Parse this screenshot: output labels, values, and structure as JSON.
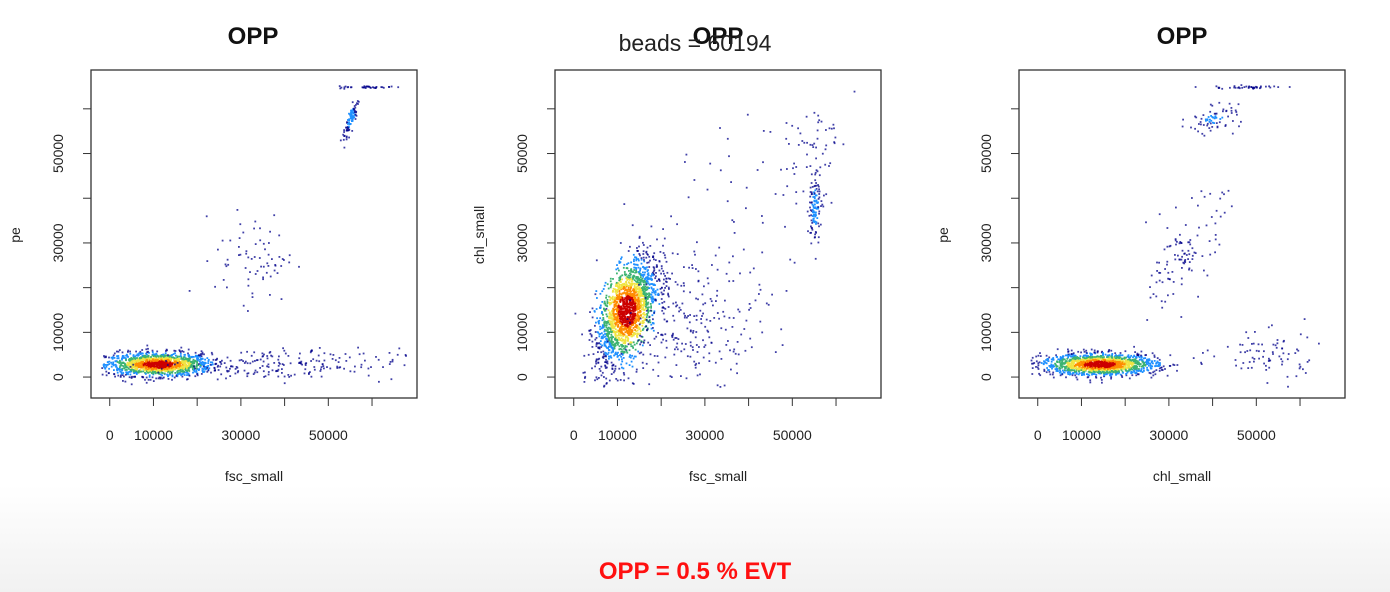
{
  "overlay_text": "beads = 60194",
  "footer": {
    "text": "OPP = 0.5 % EVT",
    "color": "#ff1010"
  },
  "colors": {
    "low": "#00008b",
    "mid_low": "#1e90ff",
    "mid": "#3cb371",
    "mid_high": "#f0e442",
    "high_orange": "#ff8c00",
    "high": "#cc0000"
  },
  "chart_data": [
    {
      "type": "scatter",
      "title": "OPP",
      "xlabel": "fsc_small",
      "ylabel": "pe",
      "xlim": [
        -2000,
        68000
      ],
      "ylim": [
        -2000,
        66000
      ],
      "x_ticks": [
        0,
        10000,
        30000,
        50000
      ],
      "x_minor_ticks": [
        20000,
        40000,
        60000
      ],
      "y_ticks": [
        0,
        10000,
        30000,
        50000
      ],
      "y_minor_ticks": [
        20000,
        40000,
        60000
      ],
      "density_clusters": [
        {
          "x": 11000,
          "y": 3000,
          "sx": 6000,
          "sy": 1300,
          "rho": 0,
          "n": 1400,
          "weight": 1.0
        },
        {
          "x": 38000,
          "y": 3000,
          "sx": 14000,
          "sy": 1800,
          "rho": 0,
          "n": 200,
          "weight": 0.08
        },
        {
          "x": 33000,
          "y": 27000,
          "sx": 4500,
          "sy": 5000,
          "rho": 0,
          "n": 70,
          "weight": 0.06
        },
        {
          "x": 55000,
          "y": 58000,
          "sx": 900,
          "sy": 2500,
          "rho": 0.85,
          "n": 90,
          "weight": 0.2
        },
        {
          "x": 60000,
          "y": 65000,
          "sx": 4000,
          "sy": 150,
          "rho": 0,
          "n": 40,
          "weight": 0.1
        }
      ]
    },
    {
      "type": "scatter",
      "title": "OPP",
      "xlabel": "fsc_small",
      "ylabel": "chl_small",
      "xlim": [
        -2000,
        68000
      ],
      "ylim": [
        -2000,
        66000
      ],
      "x_ticks": [
        0,
        10000,
        30000,
        50000
      ],
      "x_minor_ticks": [
        20000,
        40000,
        60000
      ],
      "y_ticks": [
        0,
        10000,
        30000,
        50000
      ],
      "y_minor_ticks": [
        20000,
        40000,
        60000
      ],
      "density_clusters": [
        {
          "x": 12000,
          "y": 15000,
          "sx": 3500,
          "sy": 6000,
          "rho": 0.55,
          "n": 1800,
          "weight": 1.0
        },
        {
          "x": 27000,
          "y": 12000,
          "sx": 9000,
          "sy": 7000,
          "rho": 0.3,
          "n": 260,
          "weight": 0.08
        },
        {
          "x": 55000,
          "y": 38000,
          "sx": 700,
          "sy": 4000,
          "rho": 0.2,
          "n": 110,
          "weight": 0.2
        },
        {
          "x": 54000,
          "y": 50000,
          "sx": 3000,
          "sy": 6000,
          "rho": 0.2,
          "n": 60,
          "weight": 0.05
        },
        {
          "x": 35000,
          "y": 40000,
          "sx": 12000,
          "sy": 12000,
          "rho": 0.3,
          "n": 50,
          "weight": 0.03
        }
      ]
    },
    {
      "type": "scatter",
      "title": "OPP",
      "xlabel": "chl_small",
      "ylabel": "pe",
      "xlim": [
        -2000,
        68000
      ],
      "ylim": [
        -2000,
        66000
      ],
      "x_ticks": [
        0,
        10000,
        30000,
        50000
      ],
      "x_minor_ticks": [
        20000,
        40000,
        60000
      ],
      "y_ticks": [
        0,
        10000,
        30000,
        50000
      ],
      "y_minor_ticks": [
        20000,
        40000,
        60000
      ],
      "density_clusters": [
        {
          "x": 14000,
          "y": 3000,
          "sx": 6500,
          "sy": 1200,
          "rho": 0,
          "n": 1500,
          "weight": 1.0
        },
        {
          "x": 34000,
          "y": 28000,
          "sx": 4000,
          "sy": 6000,
          "rho": 0.6,
          "n": 110,
          "weight": 0.06
        },
        {
          "x": 40000,
          "y": 58000,
          "sx": 3000,
          "sy": 1500,
          "rho": 0.3,
          "n": 70,
          "weight": 0.15
        },
        {
          "x": 52000,
          "y": 5000,
          "sx": 6000,
          "sy": 3000,
          "rho": 0,
          "n": 80,
          "weight": 0.05
        },
        {
          "x": 48000,
          "y": 65000,
          "sx": 4000,
          "sy": 200,
          "rho": 0,
          "n": 40,
          "weight": 0.1
        }
      ]
    }
  ]
}
